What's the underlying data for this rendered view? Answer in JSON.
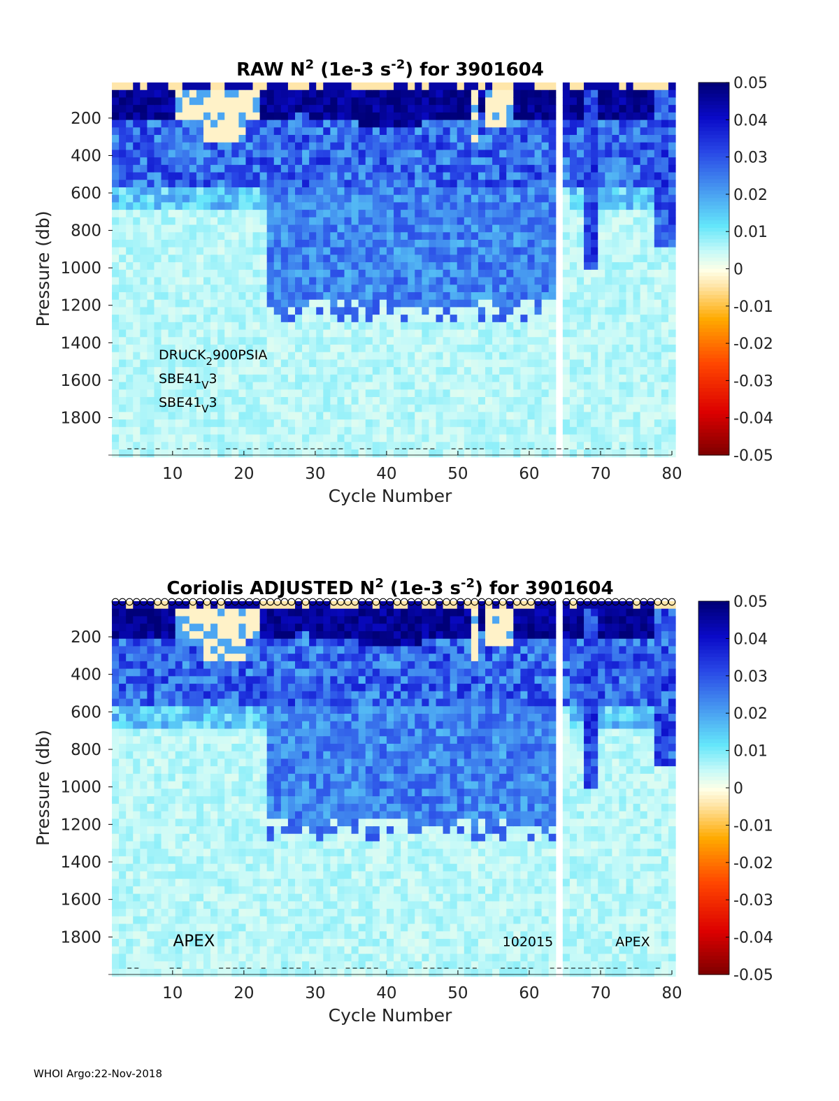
{
  "chart_data": [
    {
      "type": "heatmap",
      "title_parts": [
        "RAW N",
        "2",
        " (1e-3 s",
        "-2",
        ") for 3901604"
      ],
      "xlabel": "Cycle Number",
      "ylabel": "Pressure (db)",
      "xlim": [
        1,
        80
      ],
      "ylim": [
        2000,
        10
      ],
      "xticks": [
        10,
        20,
        30,
        40,
        50,
        60,
        70,
        80
      ],
      "yticks": [
        200,
        400,
        600,
        800,
        1000,
        1200,
        1400,
        1600,
        1800
      ],
      "missing_cycles": [
        64
      ],
      "annotations": [
        {
          "parts": [
            "DRUCK",
            "2",
            "900PSIA"
          ]
        },
        {
          "parts": [
            "SBE41",
            "V",
            "3"
          ]
        },
        {
          "parts": [
            "SBE41",
            "V",
            "3"
          ]
        }
      ],
      "colorbar": {
        "ticks": [
          "0.05",
          "0.04",
          "0.03",
          "0.02",
          "0.01",
          "0",
          "-0.01",
          "-0.02",
          "-0.03",
          "-0.04",
          "-0.05"
        ],
        "range": [
          -0.05,
          0.05
        ]
      }
    },
    {
      "type": "heatmap",
      "title_parts": [
        "Coriolis  ADJUSTED N",
        "2",
        " (1e-3 s",
        "-2",
        ") for 3901604"
      ],
      "xlabel": "Cycle Number",
      "ylabel": "Pressure (db)",
      "xlim": [
        1,
        80
      ],
      "ylim": [
        2000,
        10
      ],
      "xticks": [
        10,
        20,
        30,
        40,
        50,
        60,
        70,
        80
      ],
      "yticks": [
        200,
        400,
        600,
        800,
        1000,
        1200,
        1400,
        1600,
        1800
      ],
      "missing_cycles": [
        64
      ],
      "qc_markers": "circle",
      "text_labels": [
        {
          "text": "APEX",
          "x": 13,
          "y": 1820,
          "size": "large"
        },
        {
          "text": "102015",
          "x": 59.8,
          "y": 1820,
          "size": "small"
        },
        {
          "text": "APEX",
          "x": 74.5,
          "y": 1820,
          "size": "small"
        }
      ],
      "colorbar": {
        "ticks": [
          "0.05",
          "0.04",
          "0.03",
          "0.02",
          "0.01",
          "0",
          "-0.01",
          "-0.02",
          "-0.03",
          "-0.04",
          "-0.05"
        ],
        "range": [
          -0.05,
          0.05
        ]
      }
    }
  ],
  "footer": "WHOI Argo:22-Nov-2018"
}
